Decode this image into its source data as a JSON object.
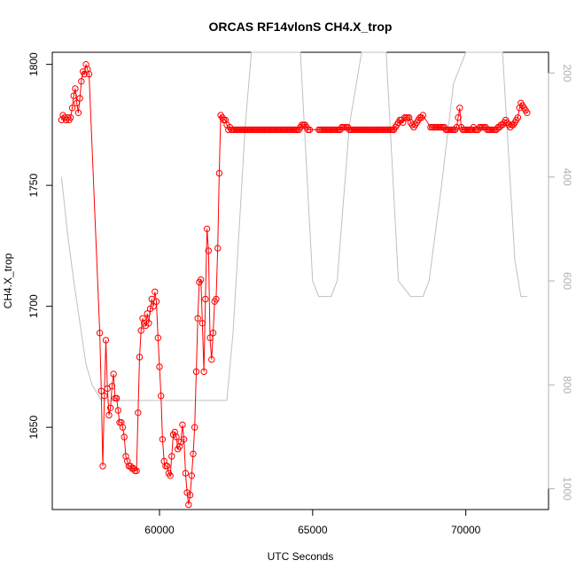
{
  "chart_data": {
    "type": "scatter",
    "title": "ORCAS RF14vlonS CH4.X_trop",
    "xlabel": "UTC Seconds",
    "ylabel": "CH4.X_trop",
    "xlim": [
      56500,
      72700
    ],
    "ylim": [
      1616,
      1805
    ],
    "y2lim": [
      1040,
      160
    ],
    "x_ticks": [
      60000,
      65000,
      70000
    ],
    "x_tick_labels": [
      "60000",
      "65000",
      "70000"
    ],
    "y_ticks": [
      1650,
      1700,
      1750,
      1800
    ],
    "y_tick_labels": [
      "1650",
      "1700",
      "1750",
      "1800"
    ],
    "y2_ticks": [
      200,
      400,
      600,
      800,
      1000
    ],
    "y2_tick_labels": [
      "200",
      "400",
      "600",
      "800",
      "1000"
    ],
    "grid": false,
    "legend": "none",
    "colors": {
      "series": "#ff0000",
      "pressure": "#c0c0c0"
    },
    "series": [
      {
        "style": "points+line",
        "color": "#ff0000",
        "x": [
          56800,
          56850,
          56900,
          56950,
          57000,
          57050,
          57100,
          57150,
          57200,
          57250,
          57300,
          57350,
          57400,
          57450,
          57500,
          57550,
          57600,
          57650,
          57700,
          58050,
          58100,
          58150,
          58200,
          58250,
          58300,
          58350,
          58400,
          58450,
          58500,
          58550,
          58600,
          58650,
          58700,
          58750,
          58800,
          58850,
          58900,
          58950,
          59000,
          59050,
          59100,
          59150,
          59200,
          59250,
          59300,
          59350,
          59400,
          59450,
          59500,
          59550,
          59600,
          59650,
          59700,
          59750,
          59800,
          59850,
          59900,
          59950,
          60000,
          60050,
          60100,
          60150,
          60200,
          60250,
          60300,
          60350,
          60400,
          60450,
          60500,
          60550,
          60600,
          60650,
          60700,
          60750,
          60800,
          60850,
          60900,
          60950,
          61000,
          61050,
          61100,
          61150,
          61200,
          61250,
          61300,
          61350,
          61400,
          61450,
          61500,
          61550,
          61600,
          61650,
          61700,
          61750,
          61800,
          61850,
          61900,
          61950,
          62000,
          62050,
          62100,
          62150,
          62200,
          62250,
          62300,
          62350,
          62400,
          62450,
          62500,
          62550,
          62600,
          62650,
          62700,
          62750,
          62800,
          62850,
          62900,
          62950,
          63000,
          63050,
          63100,
          63150,
          63200,
          63250,
          63300,
          63350,
          63400,
          63450,
          63500,
          63550,
          63600,
          63650,
          63700,
          63750,
          63800,
          63850,
          63900,
          63950,
          64000,
          64050,
          64100,
          64150,
          64200,
          64250,
          64300,
          64350,
          64400,
          64450,
          64500,
          64550,
          64600,
          64650,
          64700,
          64750,
          64800,
          64850,
          64900,
          65200,
          65250,
          65300,
          65350,
          65400,
          65450,
          65500,
          65550,
          65600,
          65650,
          65700,
          65750,
          65800,
          65850,
          65900,
          65950,
          66000,
          66050,
          66100,
          66150,
          66200,
          66250,
          66300,
          66350,
          66400,
          66450,
          66500,
          66550,
          66600,
          66650,
          66700,
          66750,
          66800,
          66850,
          66900,
          66950,
          67000,
          67050,
          67100,
          67150,
          67200,
          67250,
          67300,
          67350,
          67400,
          67450,
          67500,
          67550,
          67600,
          67650,
          67700,
          67750,
          67800,
          67850,
          67900,
          67950,
          68000,
          68050,
          68100,
          68150,
          68200,
          68250,
          68300,
          68350,
          68400,
          68450,
          68500,
          68550,
          68600,
          68850,
          68900,
          68950,
          69000,
          69050,
          69100,
          69150,
          69200,
          69250,
          69300,
          69350,
          69400,
          69450,
          69500,
          69550,
          69600,
          69650,
          69700,
          69750,
          69800,
          69850,
          69900,
          69950,
          70000,
          70050,
          70100,
          70150,
          70200,
          70250,
          70300,
          70350,
          70400,
          70450,
          70500,
          70550,
          70600,
          70650,
          70700,
          70750,
          70800,
          70850,
          70900,
          70950,
          71000,
          71050,
          71100,
          71150,
          71200,
          71250,
          71300,
          71350,
          71400,
          71450,
          71500,
          71550,
          71600,
          71650,
          71700,
          71750,
          71800,
          71850,
          71900,
          71950,
          72000
        ],
        "y": [
          1777,
          1779,
          1778,
          1777,
          1778,
          1777,
          1778,
          1782,
          1787,
          1790,
          1784,
          1780,
          1786,
          1793,
          1797,
          1796,
          1800,
          1798,
          1796,
          1689,
          1665,
          1634,
          1663,
          1686,
          1666,
          1655,
          1658,
          1667,
          1672,
          1662,
          1662,
          1657,
          1652,
          1652,
          1650,
          1646,
          1638,
          1636,
          1634,
          1634,
          1633,
          1633,
          1632,
          1632,
          1656,
          1679,
          1690,
          1695,
          1693,
          1692,
          1697,
          1693,
          1699,
          1703,
          1700,
          1706,
          1702,
          1687,
          1675,
          1663,
          1645,
          1636,
          1634,
          1634,
          1631,
          1630,
          1638,
          1647,
          1648,
          1646,
          1641,
          1642,
          1644,
          1651,
          1645,
          1631,
          1623,
          1618,
          1622,
          1630,
          1639,
          1650,
          1673,
          1695,
          1710,
          1711,
          1693,
          1673,
          1703,
          1732,
          1723,
          1687,
          1678,
          1689,
          1702,
          1703,
          1724,
          1755,
          1779,
          1778,
          1777,
          1777,
          1775,
          1773,
          1774,
          1773,
          1773,
          1773,
          1773,
          1773,
          1773,
          1773,
          1773,
          1773,
          1773,
          1773,
          1773,
          1773,
          1773,
          1773,
          1773,
          1773,
          1773,
          1773,
          1773,
          1773,
          1773,
          1773,
          1773,
          1773,
          1773,
          1773,
          1773,
          1773,
          1773,
          1773,
          1773,
          1773,
          1773,
          1773,
          1773,
          1773,
          1773,
          1773,
          1773,
          1773,
          1773,
          1773,
          1773,
          1773,
          1774,
          1775,
          1775,
          1775,
          1774,
          1773,
          1773,
          1773,
          1773,
          1773,
          1773,
          1773,
          1773,
          1773,
          1773,
          1773,
          1773,
          1773,
          1773,
          1773,
          1773,
          1773,
          1774,
          1774,
          1774,
          1774,
          1774,
          1773,
          1773,
          1773,
          1773,
          1773,
          1773,
          1773,
          1773,
          1773,
          1773,
          1773,
          1773,
          1773,
          1773,
          1773,
          1773,
          1773,
          1773,
          1773,
          1773,
          1773,
          1773,
          1773,
          1773,
          1773,
          1773,
          1773,
          1773,
          1773,
          1773,
          1774,
          1775,
          1776,
          1777,
          1777,
          1776,
          1778,
          1778,
          1778,
          1778,
          1776,
          1775,
          1774,
          1775,
          1776,
          1777,
          1778,
          1778,
          1779,
          1774,
          1774,
          1774,
          1774,
          1774,
          1774,
          1774,
          1774,
          1774,
          1774,
          1773,
          1773,
          1773,
          1773,
          1773,
          1773,
          1773,
          1774,
          1778,
          1782,
          1774,
          1773,
          1773,
          1773,
          1773,
          1773,
          1773,
          1773,
          1774,
          1773,
          1773,
          1773,
          1774,
          1774,
          1774,
          1774,
          1774,
          1773,
          1773,
          1773,
          1773,
          1773,
          1773,
          1773,
          1774,
          1774,
          1775,
          1775,
          1776,
          1777,
          1776,
          1775,
          1774,
          1775,
          1775,
          1776,
          1777,
          1778,
          1782,
          1784,
          1783,
          1782,
          1781,
          1780
        ]
      },
      {
        "name": "",
        "axis": "right",
        "style": "line",
        "color": "#c0c0c0",
        "x": [
          56800,
          57000,
          57200,
          57400,
          57600,
          57800,
          58000,
          58100,
          58300,
          60000,
          62000,
          62200,
          62400,
          62600,
          62800,
          63000,
          63300,
          63600,
          63900,
          64200,
          64600,
          65000,
          65200,
          65600,
          65800,
          66200,
          66600,
          67000,
          67400,
          67800,
          68200,
          68400,
          68600,
          68800,
          69200,
          69600,
          70000,
          70400,
          70800,
          71200,
          71600,
          71800,
          72000
        ],
        "y": [
          400,
          510,
          600,
          680,
          760,
          800,
          820,
          830,
          830,
          830,
          830,
          830,
          700,
          500,
          300,
          160,
          160,
          160,
          160,
          160,
          160,
          600,
          630,
          630,
          600,
          300,
          160,
          160,
          160,
          600,
          630,
          630,
          630,
          600,
          420,
          220,
          160,
          160,
          160,
          160,
          560,
          630,
          630
        ]
      }
    ]
  }
}
